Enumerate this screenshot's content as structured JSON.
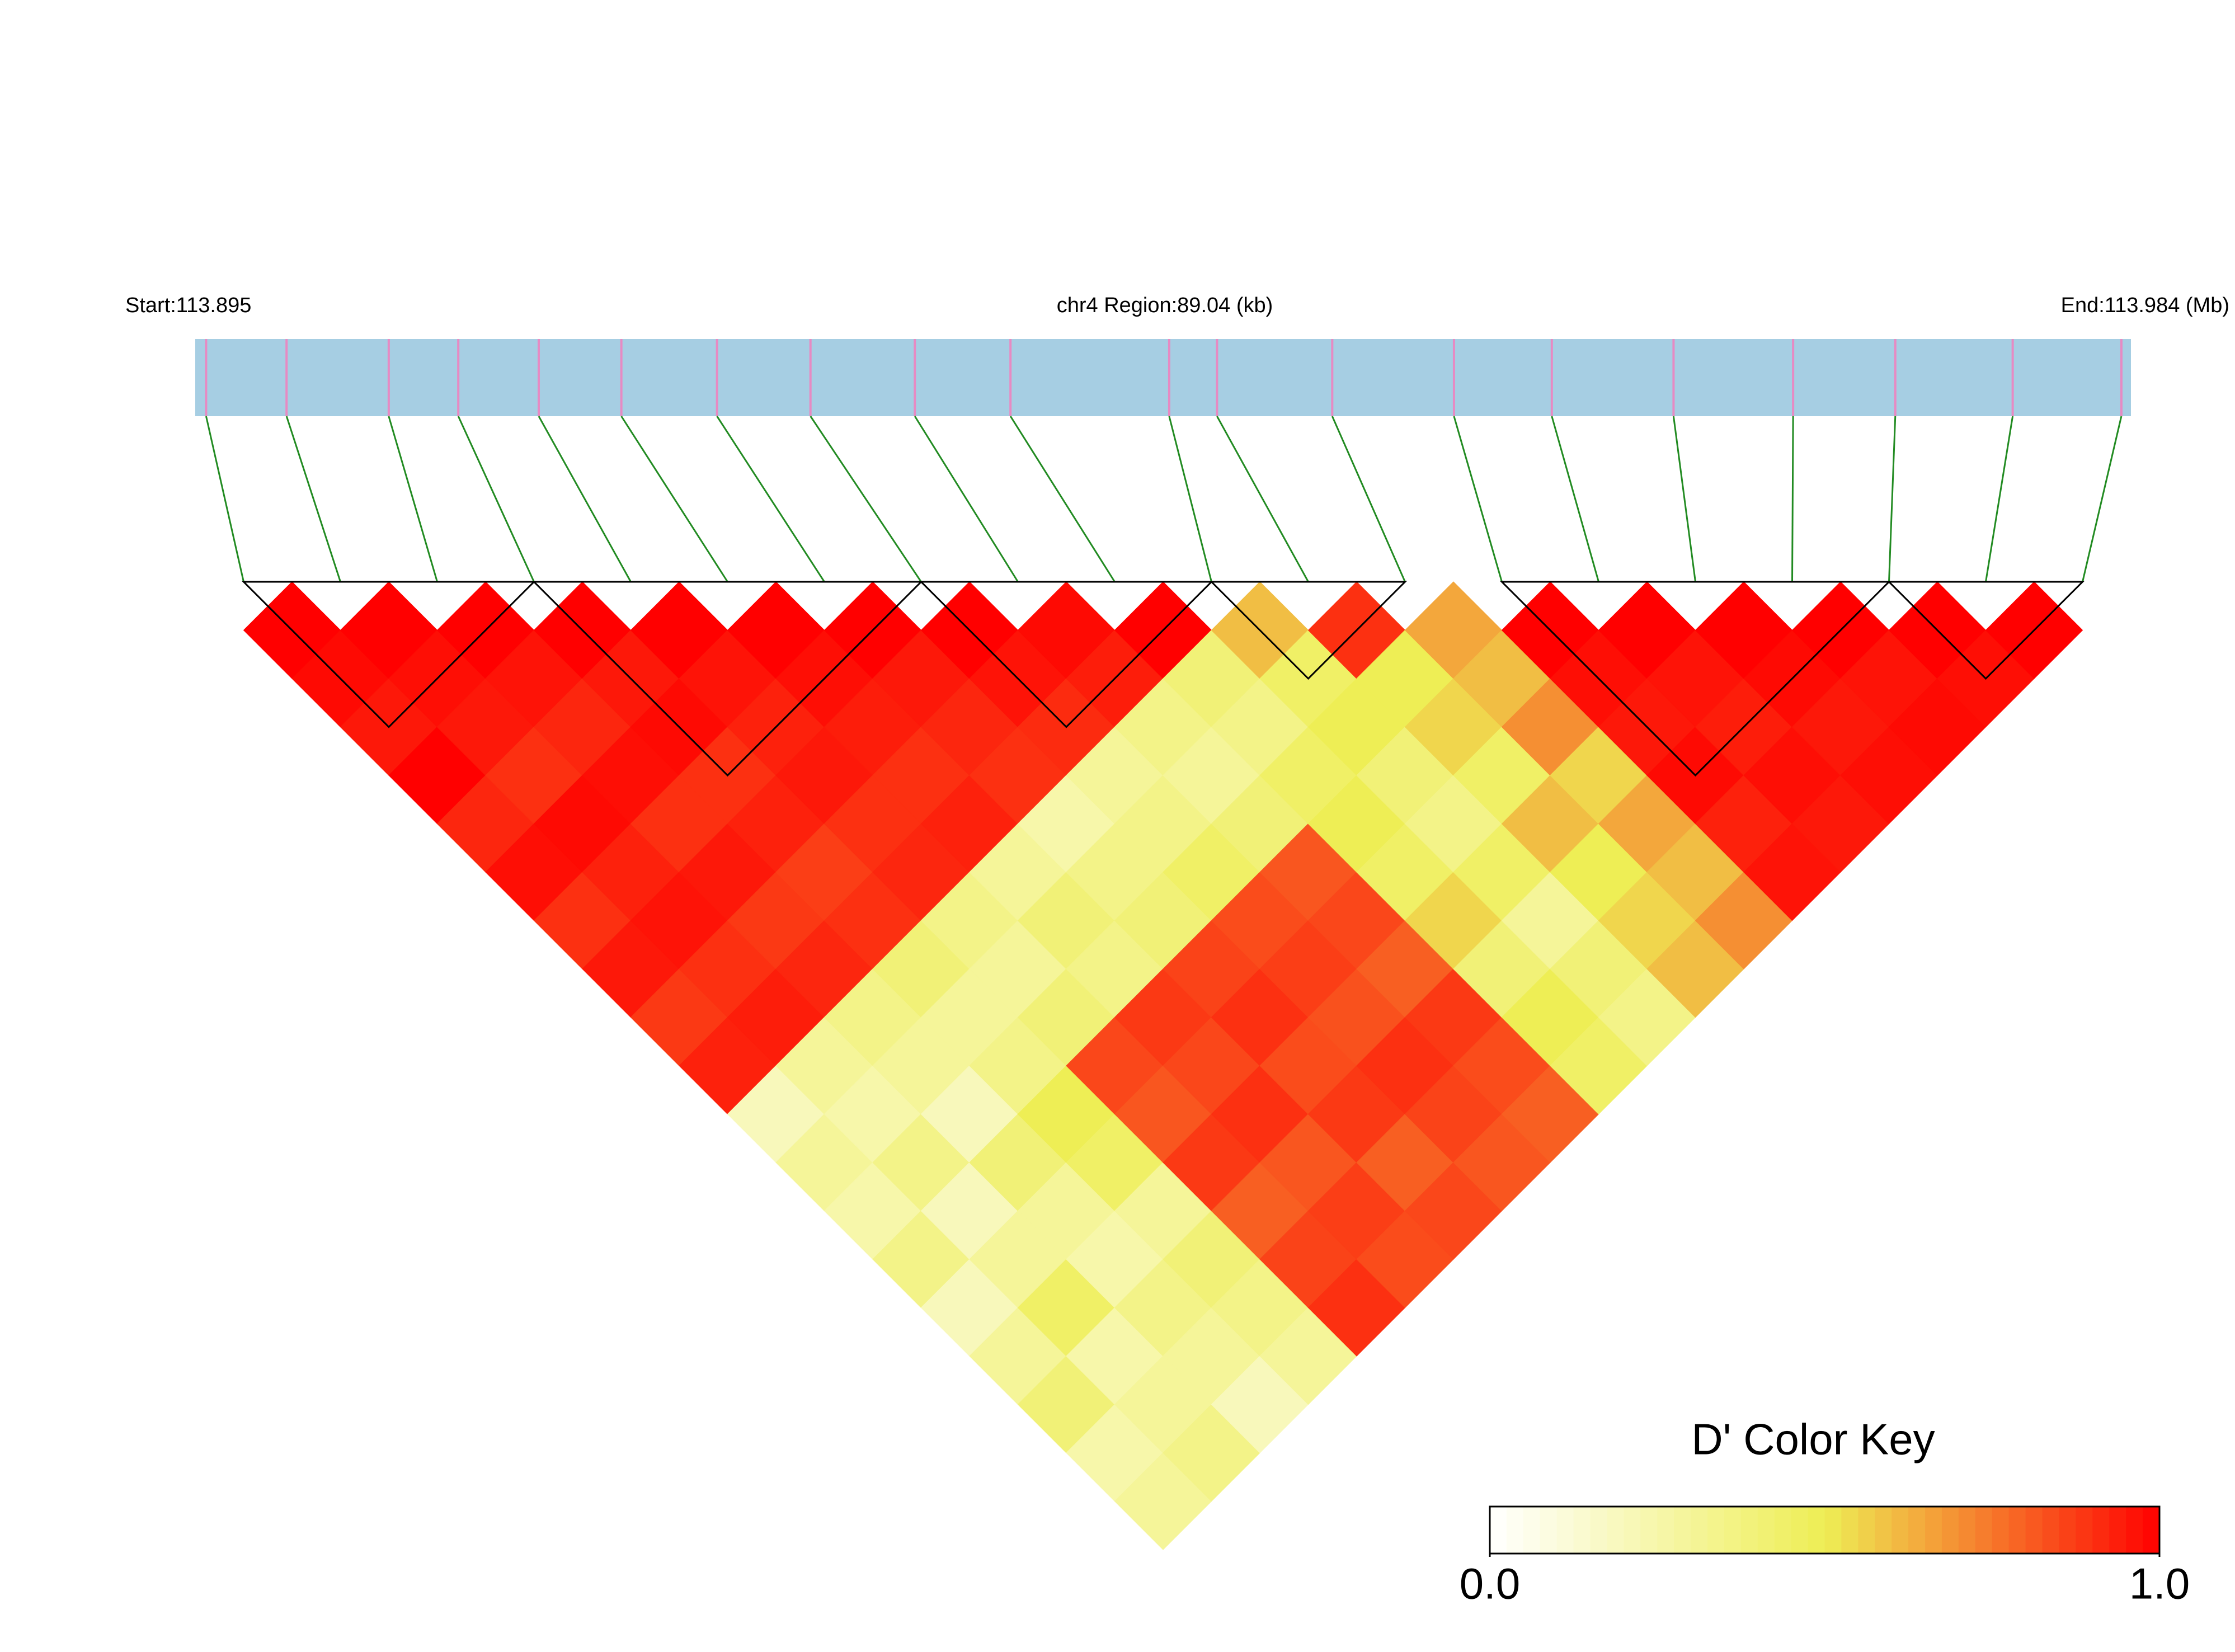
{
  "chart_data": {
    "type": "ld-heatmap",
    "start_label": "Start:113.895",
    "region_label": "chr4 Region:89.04 (kb)",
    "end_label": "End:113.984 (Mb)",
    "xlim": [
      0,
      89.04
    ],
    "snp_positions": [
      0.5,
      4.2,
      8.9,
      12.1,
      15.8,
      19.6,
      24.0,
      28.3,
      33.1,
      37.5,
      44.8,
      47.0,
      52.3,
      57.9,
      62.4,
      68.0,
      73.5,
      78.2,
      83.6,
      88.6
    ],
    "bar_color": "#a6cee3",
    "snp_color": "#e78ac3",
    "link_color": "#228b22",
    "dprime": [
      [
        1,
        0.98,
        0.95,
        1,
        0.92,
        0.97,
        0.9,
        0.95,
        0.88,
        0.93,
        0.2,
        0.3,
        0.25,
        0.35,
        0.2,
        0.3,
        0.4,
        0.25,
        0.3
      ],
      [
        1,
        0.97,
        0.95,
        0.9,
        0.98,
        0.93,
        0.96,
        0.9,
        0.94,
        0.3,
        0.25,
        0.35,
        0.2,
        0.3,
        0.45,
        0.25,
        0.3,
        0.35
      ],
      [
        1,
        0.96,
        0.92,
        0.97,
        0.9,
        0.95,
        0.88,
        0.92,
        0.35,
        0.3,
        0.2,
        0.4,
        0.3,
        0.25,
        0.35,
        0.3,
        0.2
      ],
      [
        1,
        0.95,
        0.98,
        0.9,
        0.93,
        0.87,
        0.9,
        0.4,
        0.3,
        0.35,
        0.5,
        0.45,
        0.3,
        0.4,
        0.35,
        0.3
      ],
      [
        1,
        0.96,
        0.93,
        0.95,
        0.9,
        0.92,
        0.35,
        0.3,
        0.4,
        0.85,
        0.82,
        0.88,
        0.8,
        0.86,
        0.9
      ],
      [
        1,
        0.97,
        0.94,
        0.9,
        0.93,
        0.3,
        0.4,
        0.35,
        0.88,
        0.85,
        0.9,
        0.82,
        0.87,
        0.84
      ],
      [
        1,
        0.95,
        0.92,
        0.9,
        0.25,
        0.35,
        0.4,
        0.86,
        0.9,
        0.84,
        0.88,
        0.8,
        0.85
      ],
      [
        1,
        0.96,
        0.91,
        0.3,
        0.35,
        0.45,
        0.84,
        0.87,
        0.83,
        0.9,
        0.86,
        0.82
      ],
      [
        0.98,
        0.94,
        0.35,
        0.3,
        0.4,
        0.82,
        0.85,
        0.8,
        0.88,
        0.84,
        0.8
      ],
      [
        1,
        0.4,
        0.35,
        0.45,
        0.5,
        0.45,
        0.55,
        0.4,
        0.5,
        0.45
      ],
      [
        0.6,
        0.45,
        0.5,
        0.4,
        0.35,
        0.45,
        0.3,
        0.4,
        0.35
      ],
      [
        0.9,
        0.5,
        0.55,
        0.45,
        0.6,
        0.5,
        0.55,
        0.6
      ],
      [
        0.65,
        0.6,
        0.7,
        0.55,
        0.65,
        0.6,
        0.7
      ],
      [
        1,
        0.97,
        0.95,
        0.98,
        0.93,
        0.96
      ],
      [
        1,
        0.96,
        0.94,
        0.97,
        0.95
      ],
      [
        1,
        0.98,
        0.95,
        0.97
      ],
      [
        1,
        0.96,
        0.98
      ],
      [
        1,
        0.97
      ],
      [
        1
      ]
    ],
    "blocks": [
      [
        0,
        3
      ],
      [
        3,
        7
      ],
      [
        7,
        10
      ],
      [
        10,
        12
      ],
      [
        13,
        17
      ],
      [
        17,
        19
      ]
    ],
    "key_title": "D' Color Key",
    "colors": [
      "#ffffff",
      "#eeee55",
      "#ff0000"
    ],
    "key_lim": [
      0,
      1
    ],
    "key_ticks": [
      {
        "value": 0,
        "label": "0.0"
      },
      {
        "value": 1,
        "label": "1.0"
      }
    ]
  }
}
